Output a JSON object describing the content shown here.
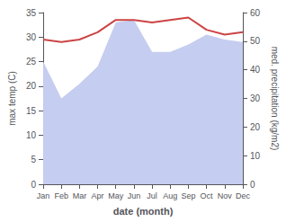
{
  "chart_data": {
    "type": "line",
    "xlabel": "date (month)",
    "ylabel": "max temp (C)",
    "y2label": "med. precipitation (kg/m2)",
    "categories": [
      "Jan",
      "Feb",
      "Mar",
      "Apr",
      "May",
      "Jun",
      "Jul",
      "Aug",
      "Sep",
      "Oct",
      "Nov",
      "Dec"
    ],
    "series": [
      {
        "type": "area",
        "color": "#c5cdf0",
        "values": [
          25.0,
          17.5,
          20.5,
          24.0,
          33.0,
          33.5,
          27.0,
          27.0,
          28.5,
          30.5,
          29.5,
          29.0
        ]
      },
      {
        "type": "line",
        "color": "#cc4444",
        "values": [
          29.5,
          29.0,
          29.5,
          31.0,
          33.5,
          33.5,
          33.0,
          33.5,
          34.0,
          31.5,
          30.5,
          31.0
        ]
      }
    ],
    "ylim": [
      0,
      35
    ],
    "yticks": [
      0,
      5,
      10,
      15,
      20,
      25,
      30,
      35
    ],
    "y2lim": [
      0,
      60
    ],
    "y2ticks": [
      0,
      10,
      20,
      30,
      40,
      50,
      60
    ],
    "grid": false
  }
}
